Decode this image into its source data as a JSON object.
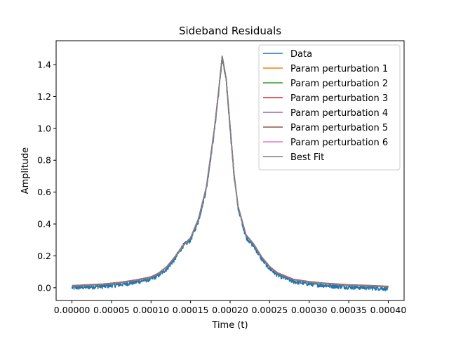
{
  "chart_data": {
    "type": "line",
    "title": "Sideband Residuals",
    "xlabel": "Time (t)",
    "ylabel": "Amplitude",
    "xlim": [
      -2e-05,
      0.00042
    ],
    "ylim": [
      -0.08,
      1.55
    ],
    "x_ticks": [
      0.0,
      5e-05,
      0.0001,
      0.00015,
      0.0002,
      0.00025,
      0.0003,
      0.00035,
      0.0004
    ],
    "x_tick_labels": [
      "0.00000",
      "0.00005",
      "0.00010",
      "0.00015",
      "0.00020",
      "0.00025",
      "0.00030",
      "0.00035",
      "0.00040"
    ],
    "y_ticks": [
      0.0,
      0.2,
      0.4,
      0.6,
      0.8,
      1.0,
      1.2,
      1.4
    ],
    "y_tick_labels": [
      "0.0",
      "0.2",
      "0.4",
      "0.6",
      "0.8",
      "1.0",
      "1.2",
      "1.4"
    ],
    "legend_position": "top-right",
    "grid": false,
    "x": [
      0.0,
      2e-05,
      4e-05,
      6e-05,
      8e-05,
      0.0001,
      0.00011,
      0.00012,
      0.00013,
      0.00014,
      0.00015,
      0.00016,
      0.00017,
      0.00018,
      0.000185,
      0.00019,
      0.000195,
      0.0002,
      0.000205,
      0.00021,
      0.00022,
      0.00023,
      0.00024,
      0.00025,
      0.00026,
      0.00028,
      0.0003,
      0.00032,
      0.00035,
      0.00038,
      0.0004
    ],
    "series": [
      {
        "name": "Data",
        "color": "#1f77b4",
        "noisy": true,
        "values": [
          0.0,
          0.005,
          0.01,
          0.02,
          0.035,
          0.055,
          0.08,
          0.12,
          0.18,
          0.26,
          0.3,
          0.42,
          0.62,
          0.98,
          1.2,
          1.44,
          1.3,
          1.0,
          0.7,
          0.5,
          0.32,
          0.26,
          0.18,
          0.12,
          0.08,
          0.04,
          0.025,
          0.015,
          0.005,
          0.0,
          -0.005
        ]
      },
      {
        "name": "Param perturbation 1",
        "color": "#ff7f0e",
        "values": [
          0.01,
          0.015,
          0.02,
          0.03,
          0.045,
          0.065,
          0.09,
          0.13,
          0.19,
          0.26,
          0.31,
          0.43,
          0.63,
          0.99,
          1.21,
          1.45,
          1.31,
          1.01,
          0.71,
          0.51,
          0.33,
          0.27,
          0.19,
          0.13,
          0.09,
          0.05,
          0.035,
          0.025,
          0.015,
          0.01,
          0.005
        ]
      },
      {
        "name": "Param perturbation 2",
        "color": "#2ca02c",
        "values": [
          0.012,
          0.017,
          0.022,
          0.032,
          0.047,
          0.067,
          0.092,
          0.132,
          0.192,
          0.262,
          0.312,
          0.432,
          0.632,
          0.992,
          1.212,
          1.452,
          1.312,
          1.012,
          0.712,
          0.512,
          0.332,
          0.272,
          0.192,
          0.132,
          0.092,
          0.052,
          0.037,
          0.027,
          0.017,
          0.012,
          0.007
        ]
      },
      {
        "name": "Param perturbation 3",
        "color": "#d62728",
        "values": [
          0.011,
          0.016,
          0.021,
          0.031,
          0.046,
          0.066,
          0.091,
          0.131,
          0.191,
          0.261,
          0.311,
          0.431,
          0.631,
          0.991,
          1.211,
          1.451,
          1.311,
          1.011,
          0.711,
          0.511,
          0.331,
          0.271,
          0.191,
          0.131,
          0.091,
          0.051,
          0.036,
          0.026,
          0.016,
          0.011,
          0.006
        ]
      },
      {
        "name": "Param perturbation 4",
        "color": "#9467bd",
        "values": [
          0.013,
          0.018,
          0.023,
          0.033,
          0.048,
          0.068,
          0.093,
          0.133,
          0.193,
          0.263,
          0.313,
          0.433,
          0.633,
          0.993,
          1.213,
          1.453,
          1.313,
          1.013,
          0.713,
          0.513,
          0.333,
          0.273,
          0.193,
          0.133,
          0.093,
          0.053,
          0.038,
          0.028,
          0.018,
          0.013,
          0.008
        ]
      },
      {
        "name": "Param perturbation 5",
        "color": "#8c564b",
        "values": [
          0.014,
          0.019,
          0.024,
          0.034,
          0.049,
          0.069,
          0.094,
          0.134,
          0.194,
          0.264,
          0.314,
          0.434,
          0.634,
          0.994,
          1.214,
          1.454,
          1.314,
          1.014,
          0.714,
          0.514,
          0.334,
          0.274,
          0.194,
          0.134,
          0.094,
          0.054,
          0.039,
          0.029,
          0.019,
          0.014,
          0.009
        ]
      },
      {
        "name": "Param perturbation 6",
        "color": "#e377c2",
        "values": [
          0.012,
          0.017,
          0.022,
          0.032,
          0.047,
          0.067,
          0.092,
          0.132,
          0.192,
          0.262,
          0.312,
          0.432,
          0.632,
          0.992,
          1.212,
          1.452,
          1.312,
          1.012,
          0.712,
          0.512,
          0.332,
          0.272,
          0.192,
          0.132,
          0.092,
          0.052,
          0.037,
          0.027,
          0.017,
          0.012,
          0.007
        ]
      },
      {
        "name": "Best Fit",
        "color": "#7f7f7f",
        "values": [
          0.012,
          0.017,
          0.022,
          0.032,
          0.047,
          0.067,
          0.092,
          0.132,
          0.192,
          0.262,
          0.312,
          0.432,
          0.632,
          0.992,
          1.212,
          1.452,
          1.312,
          1.012,
          0.712,
          0.512,
          0.332,
          0.272,
          0.192,
          0.132,
          0.092,
          0.052,
          0.037,
          0.027,
          0.017,
          0.012,
          0.007
        ]
      }
    ]
  }
}
